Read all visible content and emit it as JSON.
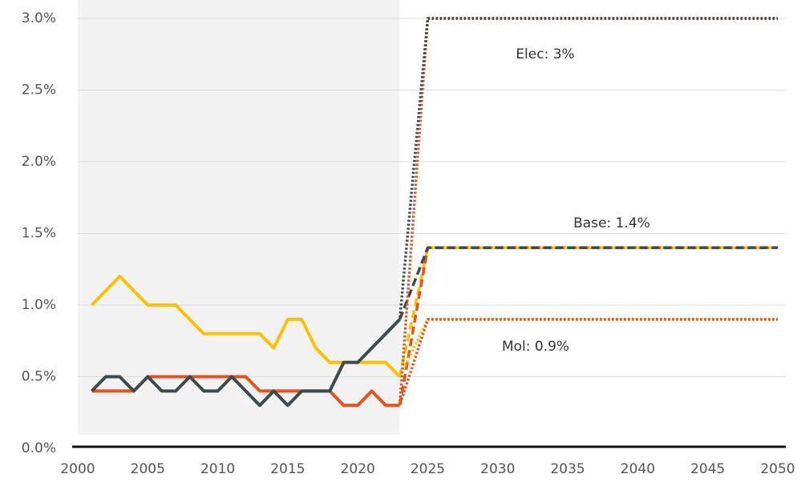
{
  "chart_data": {
    "type": "line",
    "xlim": [
      2000,
      2050
    ],
    "xticks": [
      2000,
      2005,
      2010,
      2015,
      2020,
      2025,
      2030,
      2035,
      2040,
      2045,
      2050
    ],
    "ylim": [
      0,
      3
    ],
    "yticks": [
      {
        "value": 0,
        "label": "0.0%"
      },
      {
        "value": 0.5,
        "label": "0.5%"
      },
      {
        "value": 1,
        "label": "1.0%"
      },
      {
        "value": 1.5,
        "label": "1.5%"
      },
      {
        "value": 2,
        "label": "2.0%"
      },
      {
        "value": 2.5,
        "label": "2.5%"
      },
      {
        "value": 3,
        "label": "3.0%"
      }
    ],
    "grid": true,
    "shaded_xlim": [
      2000,
      2023
    ],
    "series": [
      {
        "color": "#ffc000",
        "style": "solid",
        "x": [
          2001,
          2002,
          2003,
          2004,
          2005,
          2006,
          2007,
          2008,
          2009,
          2010,
          2011,
          2012,
          2013,
          2014,
          2015,
          2016,
          2017,
          2018,
          2019,
          2020,
          2021,
          2022,
          2023
        ],
        "values": [
          1.0,
          1.1,
          1.2,
          1.1,
          1.0,
          1.0,
          1.0,
          0.9,
          0.8,
          0.8,
          0.8,
          0.8,
          0.8,
          0.7,
          0.9,
          0.9,
          0.7,
          0.6,
          0.6,
          0.6,
          0.6,
          0.6,
          0.5
        ]
      },
      {
        "color": "#e8501c",
        "style": "solid",
        "x": [
          2001,
          2002,
          2003,
          2004,
          2005,
          2006,
          2007,
          2008,
          2009,
          2010,
          2011,
          2012,
          2013,
          2014,
          2015,
          2016,
          2017,
          2018,
          2019,
          2020,
          2021,
          2022,
          2023
        ],
        "values": [
          0.4,
          0.4,
          0.4,
          0.4,
          0.5,
          0.5,
          0.5,
          0.5,
          0.5,
          0.5,
          0.5,
          0.5,
          0.4,
          0.4,
          0.4,
          0.4,
          0.4,
          0.4,
          0.3,
          0.3,
          0.4,
          0.3,
          0.3
        ]
      },
      {
        "color": "#3d4b50",
        "style": "solid",
        "x": [
          2001,
          2002,
          2003,
          2004,
          2005,
          2006,
          2007,
          2008,
          2009,
          2010,
          2011,
          2012,
          2013,
          2014,
          2015,
          2016,
          2017,
          2018,
          2019,
          2020,
          2021,
          2022,
          2023
        ],
        "values": [
          0.4,
          0.5,
          0.5,
          0.4,
          0.5,
          0.4,
          0.4,
          0.5,
          0.4,
          0.4,
          0.5,
          0.4,
          0.3,
          0.4,
          0.3,
          0.4,
          0.4,
          0.4,
          0.6,
          0.6,
          0.7,
          0.8,
          0.9
        ]
      },
      {
        "color": "#ffc000",
        "style": "dashed",
        "x": [
          2023,
          2025,
          2050
        ],
        "values": [
          0.5,
          1.4,
          1.4
        ]
      },
      {
        "color": "#e8501c",
        "style": "dashed",
        "x": [
          2023,
          2025,
          2050
        ],
        "values": [
          0.3,
          1.4,
          1.4
        ]
      },
      {
        "color": "#3d4b50",
        "style": "dashed",
        "x": [
          2023,
          2025,
          2050
        ],
        "values": [
          0.9,
          1.4,
          1.4
        ]
      },
      {
        "color": "#ffc000",
        "style": "dotted",
        "x": [
          2023,
          2025,
          2050
        ],
        "values": [
          0.5,
          0.9,
          0.9
        ]
      },
      {
        "color": "#e8501c",
        "style": "dotted",
        "x": [
          2023,
          2025,
          2050
        ],
        "values": [
          0.3,
          0.9,
          0.9
        ]
      },
      {
        "color": "#e8501c",
        "style": "dotted",
        "x": [
          2023,
          2025,
          2050
        ],
        "values": [
          0.3,
          3.0,
          3.0
        ]
      },
      {
        "color": "#3d4b50",
        "style": "dotted",
        "x": [
          2023,
          2025,
          2050
        ],
        "values": [
          0.9,
          3.0,
          3.0
        ]
      }
    ],
    "annotations": [
      "Elec: 3%",
      "Base: 1.4%",
      "Mol: 0.9%"
    ]
  }
}
